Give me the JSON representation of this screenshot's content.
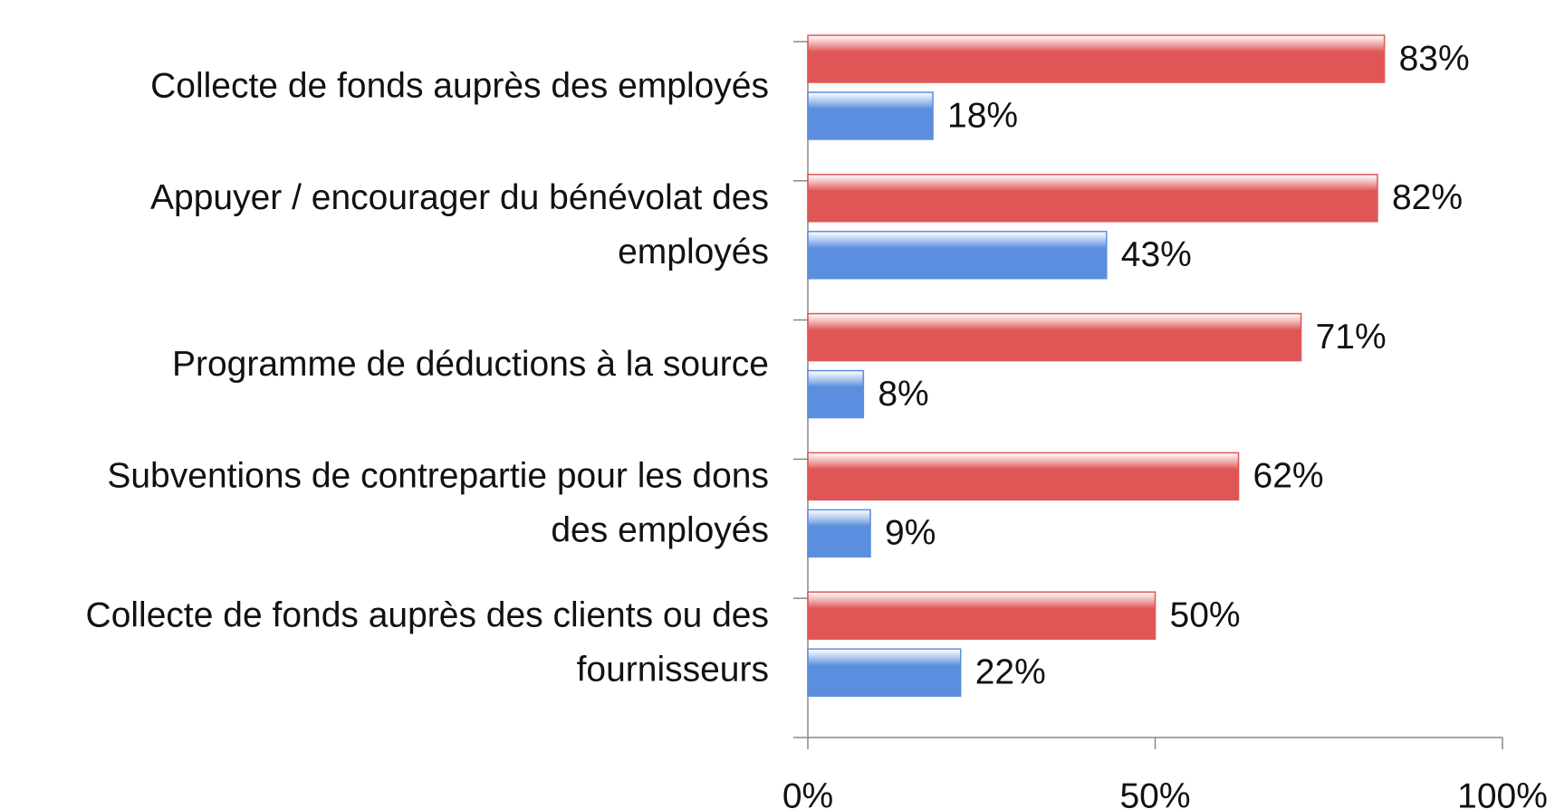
{
  "chart_data": {
    "type": "bar",
    "orientation": "horizontal",
    "categories": [
      [
        "Collecte de fonds auprès des employés"
      ],
      [
        "Appuyer / encourager du bénévolat des",
        "employés"
      ],
      [
        "Programme de déductions à la source"
      ],
      [
        "Subventions de contrepartie pour les dons",
        "des employés"
      ],
      [
        "Collecte de fonds auprès des clients ou des",
        "fournisseurs"
      ]
    ],
    "series": [
      {
        "color": "#e05656",
        "values": [
          83,
          82,
          71,
          62,
          50
        ],
        "value_labels": [
          "83%",
          "82%",
          "71%",
          "62%",
          "50%"
        ]
      },
      {
        "color": "#5b8ede",
        "values": [
          18,
          43,
          8,
          9,
          22
        ],
        "value_labels": [
          "18%",
          "43%",
          "8%",
          "9%",
          "22%"
        ]
      }
    ],
    "xlim": [
      0,
      100
    ],
    "xticks": [
      {
        "value": 0,
        "label": "0%"
      },
      {
        "value": 50,
        "label": "50%"
      },
      {
        "value": 100,
        "label": "100%"
      }
    ],
    "grid": false
  }
}
